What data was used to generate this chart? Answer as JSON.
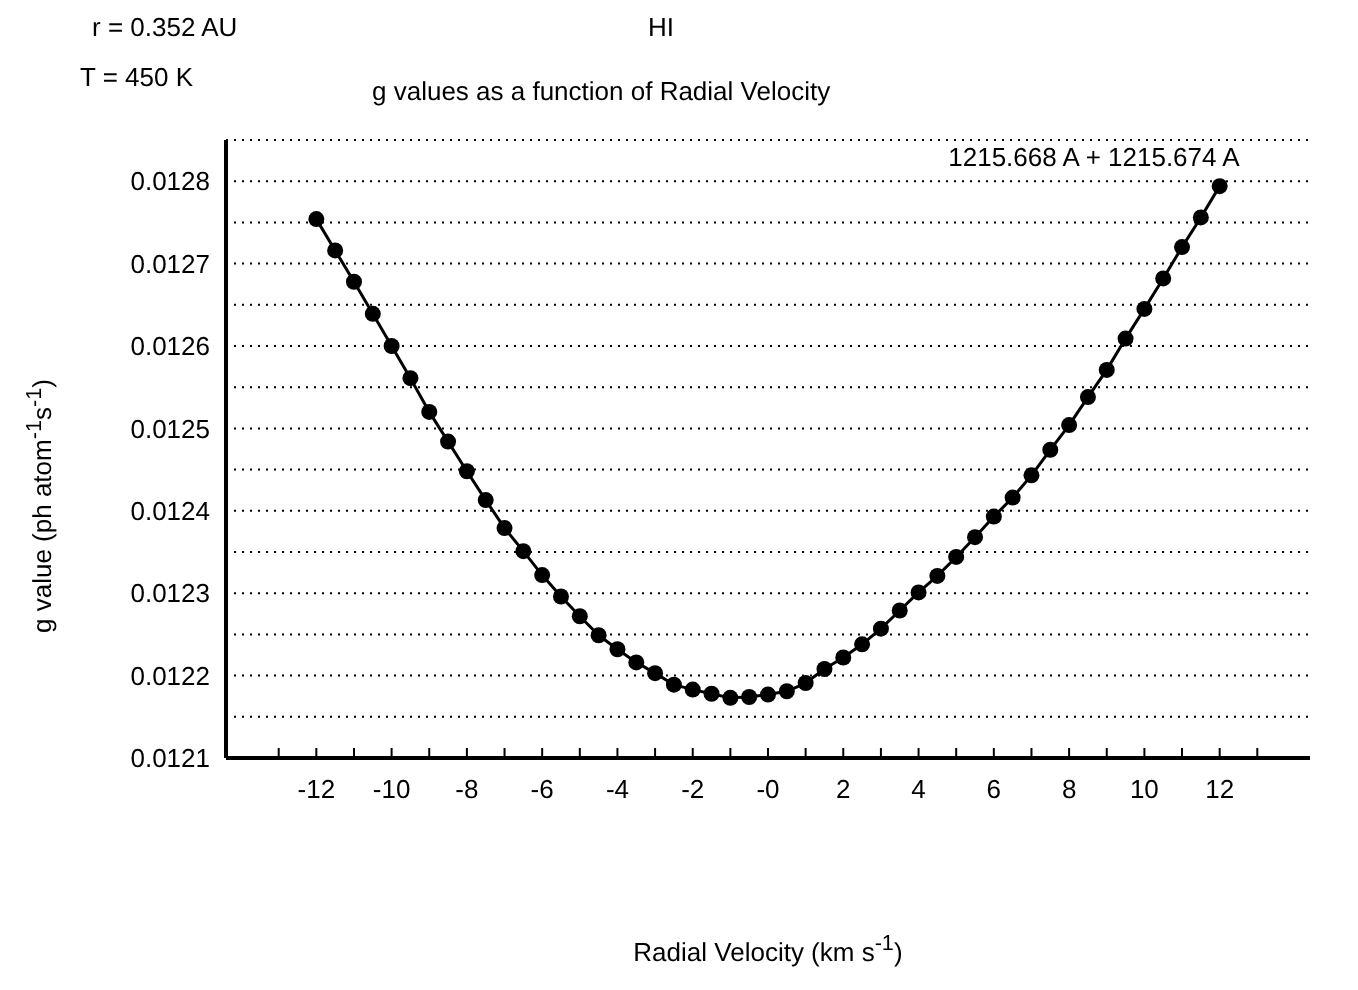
{
  "chart_data": {
    "type": "line",
    "title": "HI",
    "subtitle": "g values as a function of Radial Velocity",
    "xlabel": "Radial Velocity (km s$^{-1}$)",
    "ylabel": "g value (ph atom$^{-1}$s$^{-1}$)",
    "annotations": [
      "r = 0.352 AU",
      "T = 450 K"
    ],
    "x": [
      -12,
      -11.5,
      -11,
      -10.5,
      -10,
      -9.5,
      -9,
      -8.5,
      -8,
      -7.5,
      -7,
      -6.5,
      -6,
      -5.5,
      -5,
      -4.5,
      -4,
      -3.5,
      -3,
      -2.5,
      -2,
      -1.5,
      -1,
      -0.5,
      0,
      0.5,
      1,
      1.5,
      2,
      2.5,
      3,
      3.5,
      4,
      4.5,
      5,
      5.5,
      6,
      6.5,
      7,
      7.5,
      8,
      8.5,
      9,
      9.5,
      10,
      10.5,
      11,
      11.5,
      12
    ],
    "series": [
      {
        "name": "1215.668 A + 1215.674 A",
        "color": "#000000",
        "values": [
          0.012754,
          0.012716,
          0.012678,
          0.012639,
          0.0126,
          0.012561,
          0.01252,
          0.012484,
          0.012448,
          0.012413,
          0.012379,
          0.012351,
          0.012322,
          0.012296,
          0.012272,
          0.012249,
          0.012232,
          0.012216,
          0.012203,
          0.012189,
          0.012183,
          0.012178,
          0.012173,
          0.012174,
          0.012177,
          0.012181,
          0.012191,
          0.012208,
          0.012222,
          0.012238,
          0.012257,
          0.012279,
          0.012301,
          0.012321,
          0.012344,
          0.012368,
          0.012393,
          0.012416,
          0.012443,
          0.012474,
          0.012504,
          0.012538,
          0.012571,
          0.012609,
          0.012645,
          0.012682,
          0.01272,
          0.012756,
          0.012794
        ]
      }
    ],
    "xlim": [
      -14.4,
      14.4
    ],
    "xticks": [
      {
        "value": -13,
        "label": null
      },
      -12,
      {
        "value": -11,
        "label": null
      },
      -10,
      {
        "value": -9,
        "label": null
      },
      -8,
      {
        "value": -7,
        "label": null
      },
      -6,
      {
        "value": -5,
        "label": null
      },
      -4,
      {
        "value": -3,
        "label": null
      },
      -2,
      {
        "value": -1,
        "label": null
      },
      {
        "value": 0,
        "label": "-0"
      },
      {
        "value": 1,
        "label": null
      },
      2,
      {
        "value": 3,
        "label": null
      },
      4,
      {
        "value": 5,
        "label": null
      },
      6,
      {
        "value": 7,
        "label": null
      },
      8,
      {
        "value": 9,
        "label": null
      },
      10,
      {
        "value": 11,
        "label": null
      },
      12,
      {
        "value": 13,
        "label": null
      }
    ],
    "ylim": [
      0.0121,
      0.01285
    ],
    "yticks": [
      0.0121,
      {
        "value": 0.01215,
        "label": null
      },
      0.0122,
      {
        "value": 0.01225,
        "label": null
      },
      0.0123,
      {
        "value": 0.01235,
        "label": null
      },
      0.0124,
      {
        "value": 0.01245,
        "label": null
      },
      0.0125,
      {
        "value": 0.01255,
        "label": null
      },
      0.0126,
      {
        "value": 0.01265,
        "label": null
      },
      0.0127,
      {
        "value": 0.01275,
        "label": null
      },
      0.0128,
      {
        "value": 0.01285,
        "label": null
      }
    ],
    "grid": "y",
    "marker": "circle",
    "line_style": "solid"
  }
}
